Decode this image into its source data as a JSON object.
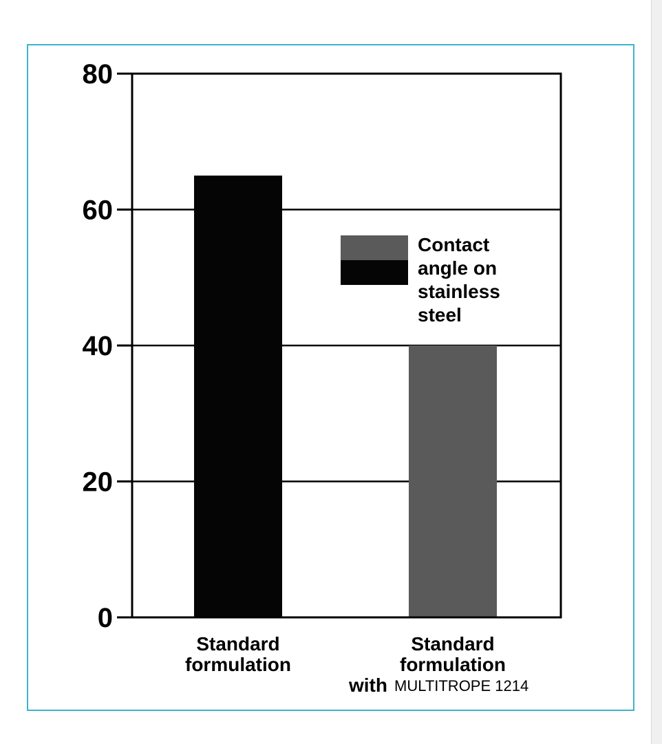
{
  "chart_data": {
    "type": "bar",
    "categories": [
      {
        "lines": [
          "Standard",
          "formulation"
        ],
        "suffix": ""
      },
      {
        "lines": [
          "Standard",
          "formulation",
          "with"
        ],
        "suffix": "MULTITROPE 1214"
      }
    ],
    "values": [
      65,
      40
    ],
    "bar_colors": [
      "#050505",
      "#5a5a5a"
    ],
    "ylim": [
      0,
      80
    ],
    "yticks": [
      0,
      20,
      40,
      60,
      80
    ],
    "ytick_labels": [
      "0",
      "20",
      "40",
      "60",
      "80"
    ],
    "grid": true,
    "legend": {
      "placement": "right-center",
      "swatch_colors": [
        "#5a5a5a",
        "#050505"
      ],
      "lines": [
        "Contact",
        "angle on",
        "stainless",
        "steel"
      ]
    },
    "title": "",
    "xlabel": "",
    "ylabel": ""
  },
  "colors": {
    "frame_border": "#3bb3cc",
    "axis": "#000000"
  }
}
